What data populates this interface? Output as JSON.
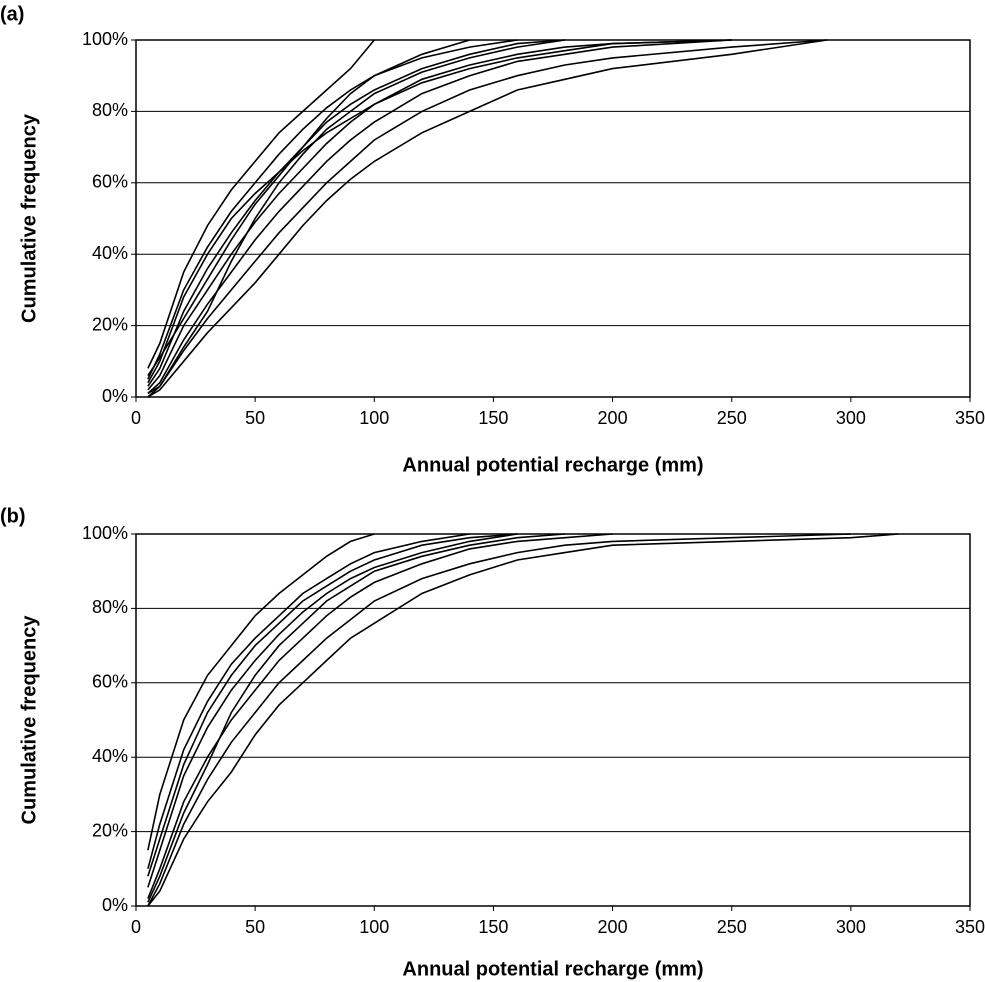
{
  "chart_data": [
    {
      "type": "line",
      "title": "(a)",
      "xlabel": "Annual potential recharge (mm)",
      "ylabel": "Cumulative frequency",
      "xlim": [
        0,
        350
      ],
      "ylim": [
        0,
        100
      ],
      "grid": true,
      "color": "#000000",
      "xticks": [
        0,
        50,
        100,
        150,
        200,
        250,
        300,
        350
      ],
      "yticks": [
        {
          "value": 0,
          "label": "0%"
        },
        {
          "value": 20,
          "label": "20%"
        },
        {
          "value": 40,
          "label": "40%"
        },
        {
          "value": 60,
          "label": "60%"
        },
        {
          "value": 80,
          "label": "80%"
        },
        {
          "value": 100,
          "label": "100%"
        }
      ],
      "x": [
        5,
        10,
        20,
        30,
        40,
        50,
        60,
        70,
        80,
        90,
        100,
        120,
        140,
        160,
        180,
        200,
        250,
        290
      ],
      "series": [
        {
          "color": "#000000",
          "values": [
            8,
            15,
            35,
            48,
            58,
            66,
            74,
            80,
            86,
            92,
            100,
            null,
            null,
            null,
            null,
            null,
            null,
            null
          ]
        },
        {
          "color": "#000000",
          "values": [
            5,
            12,
            30,
            42,
            52,
            60,
            68,
            75,
            81,
            86,
            90,
            96,
            100,
            null,
            null,
            null,
            null,
            null
          ]
        },
        {
          "color": "#000000",
          "values": [
            3,
            8,
            24,
            36,
            46,
            55,
            63,
            70,
            77,
            82,
            86,
            92,
            96,
            99,
            100,
            null,
            null,
            null
          ]
        },
        {
          "color": "#000000",
          "values": [
            2,
            6,
            20,
            30,
            40,
            49,
            57,
            64,
            71,
            77,
            82,
            89,
            93,
            96,
            98,
            99,
            100,
            null
          ]
        },
        {
          "color": "#000000",
          "values": [
            1,
            4,
            16,
            26,
            35,
            44,
            52,
            59,
            66,
            72,
            77,
            85,
            90,
            94,
            96,
            98,
            100,
            null
          ]
        },
        {
          "color": "#000000",
          "values": [
            0,
            3,
            13,
            22,
            30,
            38,
            46,
            53,
            60,
            66,
            72,
            80,
            86,
            90,
            93,
            95,
            98,
            100
          ]
        },
        {
          "color": "#000000",
          "values": [
            0,
            2,
            10,
            18,
            25,
            32,
            40,
            48,
            55,
            61,
            66,
            74,
            80,
            86,
            89,
            92,
            96,
            100
          ]
        },
        {
          "color": "#000000",
          "values": [
            4,
            10,
            28,
            40,
            50,
            57,
            63,
            69,
            74,
            78,
            82,
            88,
            92,
            95,
            97,
            99,
            100,
            null
          ]
        },
        {
          "color": "#000000",
          "values": [
            1,
            3,
            14,
            24,
            38,
            50,
            60,
            68,
            75,
            80,
            85,
            91,
            95,
            98,
            100,
            null,
            null,
            null
          ]
        },
        {
          "color": "#000000",
          "values": [
            6,
            11,
            22,
            33,
            44,
            54,
            62,
            70,
            78,
            85,
            90,
            95,
            98,
            100,
            null,
            null,
            null,
            null
          ]
        }
      ]
    },
    {
      "type": "line",
      "title": "(b)",
      "xlabel": "Annual potential recharge (mm)",
      "ylabel": "Cumulative frequency",
      "xlim": [
        0,
        350
      ],
      "ylim": [
        0,
        100
      ],
      "grid": true,
      "color": "#000000",
      "xticks": [
        0,
        50,
        100,
        150,
        200,
        250,
        300,
        350
      ],
      "yticks": [
        {
          "value": 0,
          "label": "0%"
        },
        {
          "value": 20,
          "label": "20%"
        },
        {
          "value": 40,
          "label": "40%"
        },
        {
          "value": 60,
          "label": "60%"
        },
        {
          "value": 80,
          "label": "80%"
        },
        {
          "value": 100,
          "label": "100%"
        }
      ],
      "x": [
        5,
        10,
        20,
        30,
        40,
        50,
        60,
        70,
        80,
        90,
        100,
        120,
        140,
        160,
        180,
        200,
        250,
        300,
        320
      ],
      "series": [
        {
          "color": "#000000",
          "values": [
            15,
            30,
            50,
            62,
            70,
            78,
            84,
            89,
            94,
            98,
            100,
            null,
            null,
            null,
            null,
            null,
            null,
            null,
            null
          ]
        },
        {
          "color": "#000000",
          "values": [
            10,
            22,
            42,
            55,
            65,
            72,
            78,
            84,
            88,
            92,
            95,
            98,
            100,
            null,
            null,
            null,
            null,
            null,
            null
          ]
        },
        {
          "color": "#000000",
          "values": [
            5,
            15,
            35,
            48,
            58,
            66,
            73,
            79,
            84,
            88,
            91,
            95,
            98,
            100,
            null,
            null,
            null,
            null,
            null
          ]
        },
        {
          "color": "#000000",
          "values": [
            2,
            10,
            28,
            40,
            50,
            58,
            66,
            72,
            78,
            83,
            87,
            92,
            96,
            98,
            99,
            100,
            null,
            null,
            null
          ]
        },
        {
          "color": "#000000",
          "values": [
            0,
            6,
            22,
            34,
            44,
            52,
            60,
            66,
            72,
            77,
            82,
            88,
            92,
            95,
            97,
            98,
            99,
            100,
            null
          ]
        },
        {
          "color": "#000000",
          "values": [
            0,
            4,
            18,
            28,
            36,
            46,
            54,
            60,
            66,
            72,
            76,
            84,
            89,
            93,
            95,
            97,
            98,
            99,
            100
          ]
        },
        {
          "color": "#000000",
          "values": [
            1,
            8,
            25,
            38,
            52,
            62,
            70,
            76,
            82,
            86,
            90,
            94,
            97,
            99,
            100,
            null,
            null,
            null,
            null
          ]
        },
        {
          "color": "#000000",
          "values": [
            8,
            18,
            38,
            52,
            62,
            70,
            76,
            82,
            86,
            90,
            93,
            97,
            99,
            100,
            null,
            null,
            null,
            null,
            null
          ]
        }
      ]
    }
  ]
}
